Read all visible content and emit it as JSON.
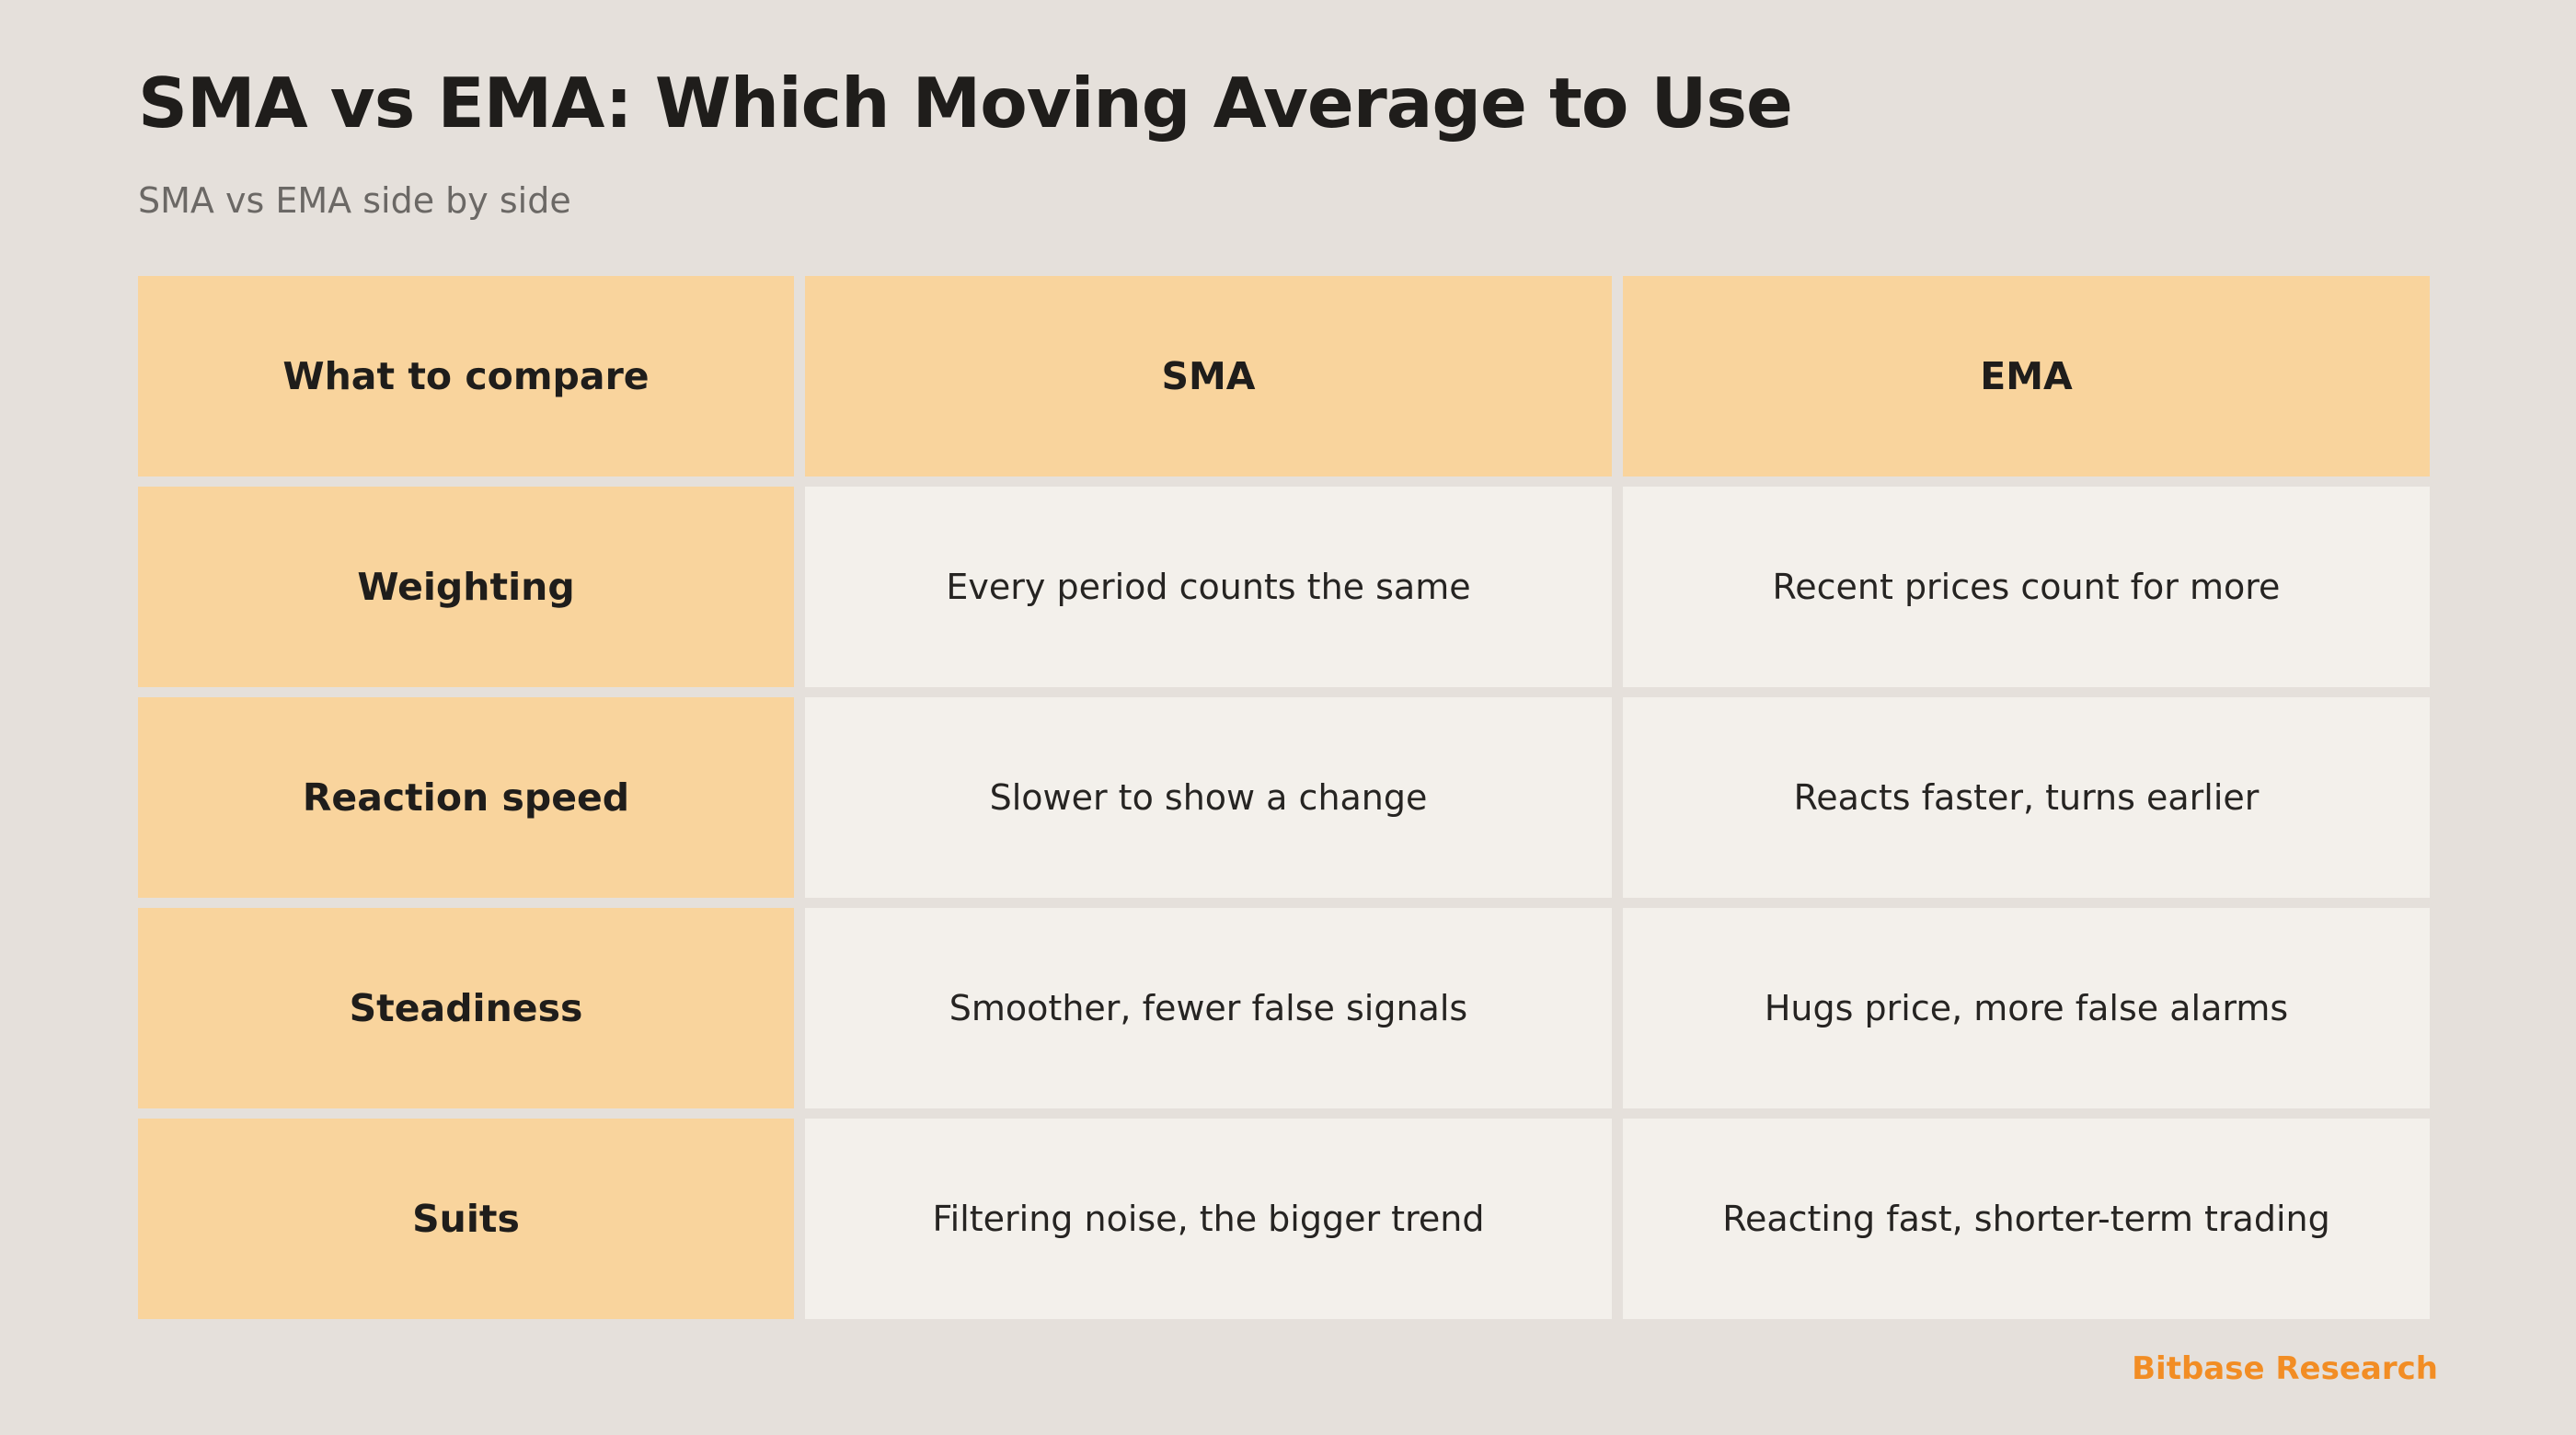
{
  "title": "SMA vs EMA: Which Moving Average to Use",
  "subtitle": "SMA vs EMA side by side",
  "table": {
    "headers": [
      "What to compare",
      "SMA",
      "EMA"
    ],
    "rows": [
      {
        "label": "Weighting",
        "sma": "Every period counts the same",
        "ema": "Recent prices count for more"
      },
      {
        "label": "Reaction speed",
        "sma": "Slower to show a change",
        "ema": "Reacts faster, turns earlier"
      },
      {
        "label": "Steadiness",
        "sma": "Smoother, fewer false signals",
        "ema": "Hugs price, more false alarms"
      },
      {
        "label": "Suits",
        "sma": "Filtering noise, the bigger trend",
        "ema": "Reacting fast, shorter-term trading"
      }
    ]
  },
  "brand": "Bitbase Research",
  "colors": {
    "background": "#e5e0db",
    "header_fill": "#f9d49d",
    "cell_fill": "#f3f0eb",
    "brand": "#f28d24"
  }
}
